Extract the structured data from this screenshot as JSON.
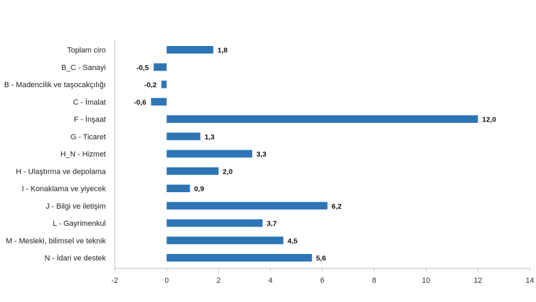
{
  "chart_data": {
    "type": "bar",
    "orientation": "horizontal",
    "title": "",
    "xlabel": "",
    "ylabel": "",
    "xlim": [
      -2,
      14
    ],
    "x_ticks": [
      -2,
      0,
      2,
      4,
      6,
      8,
      10,
      12,
      14
    ],
    "grid": false,
    "legend": "none",
    "bar_color": "#2E75B6",
    "categories": [
      "Toplam ciro",
      "B_C - Sanayi",
      "B - Madencilik ve taşocakçılığı",
      "C - İmalat",
      "F - İnşaat",
      "G - Ticaret",
      "H_N - Hizmet",
      "H - Ulaştırma ve depolama",
      "I - Konaklama ve yiyecek",
      "J - Bilgi ve iletişim",
      "L - Gayrimenkul",
      "M - Mesleki, bilimsel ve teknik",
      "N - İdari ve destek"
    ],
    "values": [
      1.8,
      -0.5,
      -0.2,
      -0.6,
      12.0,
      1.3,
      3.3,
      2.0,
      0.9,
      6.2,
      3.7,
      4.5,
      5.6
    ],
    "value_labels": [
      "1,8",
      "-0,5",
      "-0,2",
      "-0,6",
      "12,0",
      "1,3",
      "3,3",
      "2,0",
      "0,9",
      "6,2",
      "3,7",
      "4,5",
      "5,6"
    ]
  }
}
